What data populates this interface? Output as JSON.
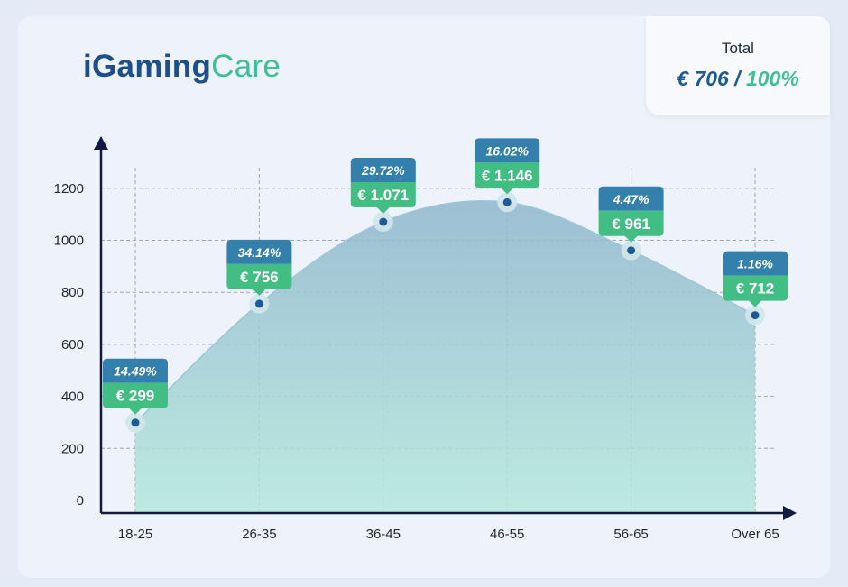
{
  "logo": {
    "part1": "iGaming",
    "part2": "Care"
  },
  "total": {
    "label": "Total",
    "value": "€ 706",
    "separator": "/",
    "percent": "100%"
  },
  "colors": {
    "navy": "#1d4f8c",
    "teal_green": "#3fbf94",
    "label_blue": "#3380ad",
    "label_green": "#42bd84",
    "axis": "#121b3f"
  },
  "chart_data": {
    "type": "area",
    "categories": [
      "18-25",
      "26-35",
      "36-45",
      "46-55",
      "56-65",
      "Over 65"
    ],
    "values": [
      299,
      756,
      1071,
      1146,
      961,
      712
    ],
    "value_labels": [
      "€ 299",
      "€ 756",
      "€ 1.071",
      "€ 1.146",
      "€ 961",
      "€ 712"
    ],
    "percent_labels": [
      "14.49%",
      "34.14%",
      "29.72%",
      "16.02%",
      "4.47%",
      "1.16%"
    ],
    "yticks": [
      0,
      200,
      400,
      600,
      800,
      1000,
      1200
    ],
    "ylim": [
      0,
      1200
    ],
    "grid": true
  }
}
